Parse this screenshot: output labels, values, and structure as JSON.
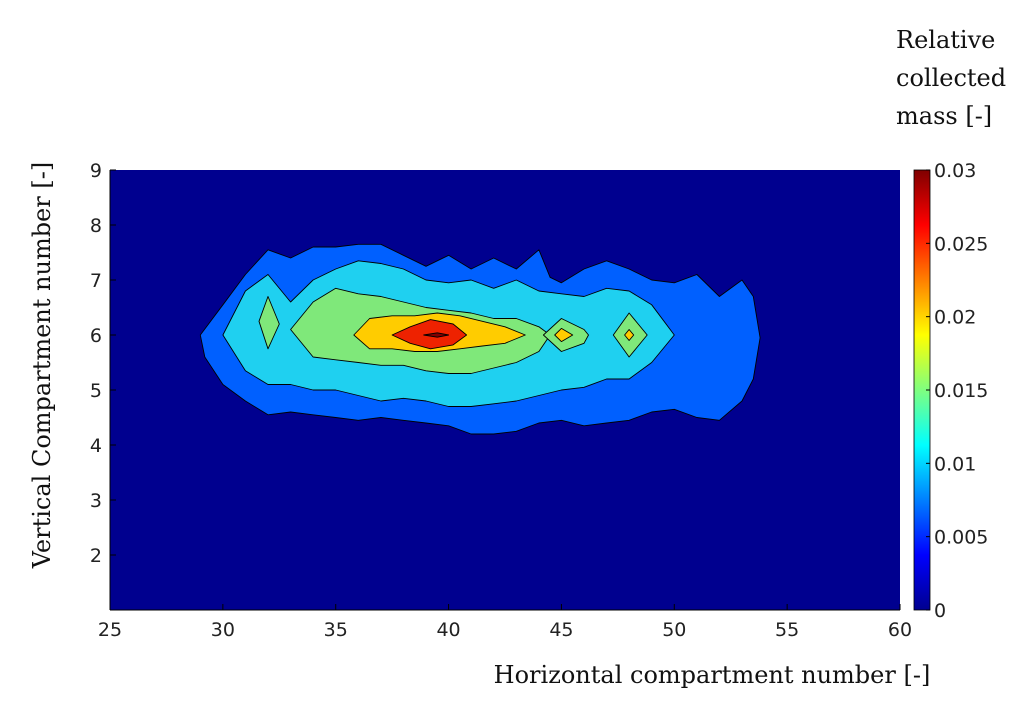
{
  "chart_data": {
    "type": "heatmap",
    "subtype": "filled-contour",
    "title": "",
    "xlabel": "Horizontal compartment number [-]",
    "ylabel": "Vertical Compartment number [-]",
    "xlim": [
      25,
      60
    ],
    "ylim": [
      1,
      9
    ],
    "xticks": [
      "25",
      "30",
      "35",
      "40",
      "45",
      "50",
      "55",
      "60"
    ],
    "yticks": [
      "2",
      "3",
      "4",
      "5",
      "6",
      "7",
      "8",
      "9"
    ],
    "colorbar": {
      "title_lines": [
        "Relative",
        "collected",
        "mass [-]"
      ],
      "range": [
        0,
        0.03
      ],
      "ticks": [
        "0",
        "0.005",
        "0.01",
        "0.015",
        "0.02",
        "0.025",
        "0.03"
      ],
      "colormap": "jet"
    },
    "contour_levels": [
      0,
      0.005,
      0.01,
      0.015,
      0.02,
      0.025,
      0.03
    ],
    "background_value": 0,
    "level_colors": [
      "#00008f",
      "#0060ff",
      "#1fd0f0",
      "#7fe87a",
      "#ffcc00",
      "#ee2200",
      "#800000"
    ],
    "regions": [
      {
        "level": 0.005,
        "points": [
          [
            29,
            6
          ],
          [
            30,
            6.55
          ],
          [
            31,
            7.1
          ],
          [
            32,
            7.55
          ],
          [
            33,
            7.4
          ],
          [
            34,
            7.6
          ],
          [
            35,
            7.6
          ],
          [
            36,
            7.65
          ],
          [
            37,
            7.65
          ],
          [
            38,
            7.45
          ],
          [
            39,
            7.25
          ],
          [
            40,
            7.45
          ],
          [
            41,
            7.2
          ],
          [
            42,
            7.4
          ],
          [
            43,
            7.2
          ],
          [
            44,
            7.55
          ],
          [
            44.5,
            7.05
          ],
          [
            45,
            6.95
          ],
          [
            46,
            7.2
          ],
          [
            47,
            7.35
          ],
          [
            48,
            7.2
          ],
          [
            49,
            7.0
          ],
          [
            50,
            6.95
          ],
          [
            51,
            7.1
          ],
          [
            52,
            6.7
          ],
          [
            53,
            7.0
          ],
          [
            53.5,
            6.7
          ],
          [
            53.8,
            5.95
          ],
          [
            53.5,
            5.2
          ],
          [
            53,
            4.8
          ],
          [
            52,
            4.45
          ],
          [
            51,
            4.5
          ],
          [
            50,
            4.65
          ],
          [
            49,
            4.6
          ],
          [
            48,
            4.45
          ],
          [
            47,
            4.4
          ],
          [
            46,
            4.35
          ],
          [
            45,
            4.45
          ],
          [
            44,
            4.4
          ],
          [
            43,
            4.25
          ],
          [
            42,
            4.2
          ],
          [
            41,
            4.2
          ],
          [
            40,
            4.35
          ],
          [
            39,
            4.4
          ],
          [
            38,
            4.45
          ],
          [
            37,
            4.5
          ],
          [
            36,
            4.45
          ],
          [
            35,
            4.5
          ],
          [
            34,
            4.55
          ],
          [
            33,
            4.6
          ],
          [
            32,
            4.55
          ],
          [
            31,
            4.8
          ],
          [
            30,
            5.1
          ],
          [
            29.2,
            5.6
          ]
        ]
      },
      {
        "level": 0.01,
        "points": [
          [
            30,
            6
          ],
          [
            31,
            6.8
          ],
          [
            32,
            7.1
          ],
          [
            33,
            6.6
          ],
          [
            34,
            7.0
          ],
          [
            35,
            7.2
          ],
          [
            36,
            7.35
          ],
          [
            37,
            7.3
          ],
          [
            38,
            7.2
          ],
          [
            39,
            7.0
          ],
          [
            40,
            6.95
          ],
          [
            41,
            7.0
          ],
          [
            42,
            6.85
          ],
          [
            43,
            7.0
          ],
          [
            44,
            6.8
          ],
          [
            45,
            6.75
          ],
          [
            46,
            6.7
          ],
          [
            47,
            6.85
          ],
          [
            48,
            6.8
          ],
          [
            49,
            6.55
          ],
          [
            50,
            6.0
          ],
          [
            49,
            5.5
          ],
          [
            48,
            5.2
          ],
          [
            47,
            5.2
          ],
          [
            46,
            5.05
          ],
          [
            45,
            5.0
          ],
          [
            44,
            4.9
          ],
          [
            43,
            4.8
          ],
          [
            42,
            4.75
          ],
          [
            41,
            4.7
          ],
          [
            40,
            4.7
          ],
          [
            39,
            4.8
          ],
          [
            38,
            4.85
          ],
          [
            37,
            4.8
          ],
          [
            36,
            4.9
          ],
          [
            35,
            5.0
          ],
          [
            34,
            5.0
          ],
          [
            33,
            5.1
          ],
          [
            32,
            5.1
          ],
          [
            31,
            5.35
          ]
        ]
      },
      {
        "level": 0.015,
        "points": [
          [
            31.6,
            6.25
          ],
          [
            32,
            6.7
          ],
          [
            32.5,
            6.2
          ],
          [
            32,
            5.75
          ]
        ]
      },
      {
        "level": 0.015,
        "points": [
          [
            33,
            6.1
          ],
          [
            34,
            6.6
          ],
          [
            35,
            6.85
          ],
          [
            36,
            6.75
          ],
          [
            37,
            6.7
          ],
          [
            38,
            6.6
          ],
          [
            39,
            6.5
          ],
          [
            40,
            6.45
          ],
          [
            41,
            6.4
          ],
          [
            42,
            6.3
          ],
          [
            43,
            6.3
          ],
          [
            44,
            6.15
          ],
          [
            44.5,
            6.0
          ],
          [
            44,
            5.7
          ],
          [
            43,
            5.5
          ],
          [
            42,
            5.4
          ],
          [
            41,
            5.3
          ],
          [
            40,
            5.3
          ],
          [
            39,
            5.35
          ],
          [
            38,
            5.45
          ],
          [
            37,
            5.45
          ],
          [
            36,
            5.5
          ],
          [
            35,
            5.55
          ],
          [
            34,
            5.6
          ]
        ]
      },
      {
        "level": 0.015,
        "points": [
          [
            44.2,
            6.0
          ],
          [
            45,
            6.3
          ],
          [
            46,
            6.1
          ],
          [
            46.2,
            6.0
          ],
          [
            46,
            5.85
          ],
          [
            45,
            5.7
          ]
        ]
      },
      {
        "level": 0.015,
        "points": [
          [
            47.3,
            6.0
          ],
          [
            48,
            6.4
          ],
          [
            48.8,
            6.0
          ],
          [
            48,
            5.6
          ]
        ]
      },
      {
        "level": 0.02,
        "points": [
          [
            35.8,
            6.0
          ],
          [
            36.5,
            6.3
          ],
          [
            37.5,
            6.35
          ],
          [
            38.5,
            6.35
          ],
          [
            39.5,
            6.4
          ],
          [
            40.5,
            6.35
          ],
          [
            41.5,
            6.25
          ],
          [
            42.5,
            6.15
          ],
          [
            43.4,
            6.0
          ],
          [
            42.5,
            5.85
          ],
          [
            41.5,
            5.8
          ],
          [
            40.5,
            5.75
          ],
          [
            39.5,
            5.7
          ],
          [
            38.5,
            5.7
          ],
          [
            37.5,
            5.75
          ],
          [
            36.5,
            5.75
          ]
        ]
      },
      {
        "level": 0.02,
        "points": [
          [
            44.7,
            6.0
          ],
          [
            45,
            6.12
          ],
          [
            45.5,
            6.0
          ],
          [
            45,
            5.88
          ]
        ]
      },
      {
        "level": 0.02,
        "points": [
          [
            47.8,
            6.0
          ],
          [
            48,
            6.1
          ],
          [
            48.2,
            6.0
          ],
          [
            48,
            5.9
          ]
        ]
      },
      {
        "level": 0.025,
        "points": [
          [
            37.5,
            6.0
          ],
          [
            38.3,
            6.15
          ],
          [
            39.2,
            6.28
          ],
          [
            40.2,
            6.2
          ],
          [
            40.8,
            6.0
          ],
          [
            40.2,
            5.82
          ],
          [
            39.2,
            5.75
          ],
          [
            38.3,
            5.85
          ]
        ]
      },
      {
        "level": 0.03,
        "points": [
          [
            38.9,
            6.0
          ],
          [
            39.5,
            6.04
          ],
          [
            40.0,
            6.0
          ],
          [
            39.5,
            5.96
          ]
        ]
      }
    ]
  }
}
